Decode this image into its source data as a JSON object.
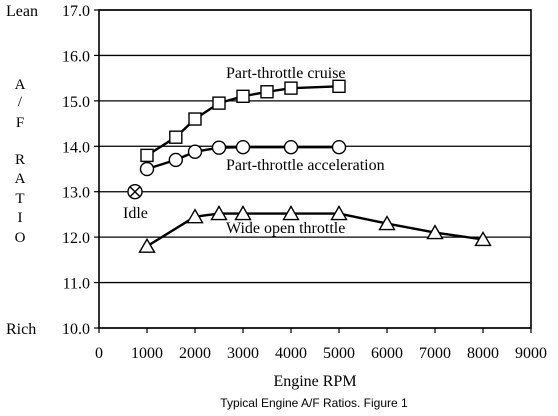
{
  "chart_data": {
    "type": "line",
    "xlabel": "Engine RPM",
    "ylabel_letters": [
      "A",
      "/",
      "F",
      "R",
      "A",
      "T",
      "I",
      "O"
    ],
    "caption": "Typical Engine A/F Ratios.  Figure 1",
    "xlim": [
      0,
      9000
    ],
    "ylim": [
      10.0,
      17.0
    ],
    "x_ticks": [
      "0",
      "1000",
      "2000",
      "3000",
      "4000",
      "5000",
      "6000",
      "7000",
      "8000",
      "9000"
    ],
    "y_ticks": [
      "10.0",
      "11.0",
      "12.0",
      "13.0",
      "14.0",
      "15.0",
      "16.0",
      "17.0"
    ],
    "y_end_labels": {
      "top": "Lean",
      "bottom": "Rich"
    },
    "grid": "horizontal",
    "series": [
      {
        "name": "Part-throttle cruise",
        "marker": "square",
        "x": [
          1000,
          1600,
          2000,
          2500,
          3000,
          3500,
          4000,
          5000
        ],
        "y": [
          13.8,
          14.2,
          14.6,
          14.95,
          15.1,
          15.2,
          15.28,
          15.32
        ]
      },
      {
        "name": "Part-throttle acceleration",
        "marker": "circle",
        "x": [
          1000,
          1600,
          2000,
          2500,
          3000,
          4000,
          5000
        ],
        "y": [
          13.5,
          13.7,
          13.88,
          13.97,
          13.98,
          13.98,
          13.98
        ]
      },
      {
        "name": "Wide open throttle",
        "marker": "triangle",
        "x": [
          1000,
          2000,
          2500,
          3000,
          4000,
          5000,
          6000,
          7000,
          8000
        ],
        "y": [
          11.8,
          12.45,
          12.52,
          12.52,
          12.52,
          12.52,
          12.3,
          12.1,
          11.95
        ]
      }
    ],
    "annotations": [
      {
        "text": "Idle",
        "x": 750,
        "y": 13.0,
        "marker": "x-circle"
      }
    ],
    "line_color": "#000000",
    "background": "#ffffff"
  }
}
